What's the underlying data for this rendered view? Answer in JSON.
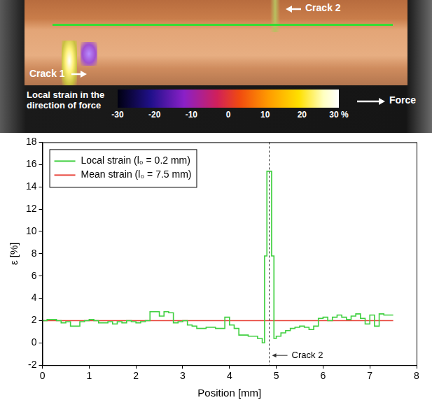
{
  "strain_map": {
    "crack_labels": [
      "Crack 1",
      "Crack 2"
    ],
    "force_label": "Force",
    "colorbar": {
      "title": "Local strain in the direction of force",
      "range": [
        -30,
        30
      ],
      "ticks": [
        -30,
        -20,
        -10,
        0,
        10,
        20,
        {
          "value": 30,
          "label": "30 %"
        }
      ]
    }
  },
  "chart_data": {
    "type": "line",
    "xlabel": "Position [mm]",
    "ylabel": "ε [%]",
    "xlim": [
      0,
      8
    ],
    "xticks": [
      0,
      1,
      2,
      3,
      4,
      5,
      6,
      7,
      8
    ],
    "ylim": [
      -2,
      18
    ],
    "yticks": [
      -2,
      0,
      2,
      4,
      6,
      8,
      10,
      12,
      14,
      16,
      18
    ],
    "grid": false,
    "legend": "upper left",
    "series": [
      {
        "name": "Local strain (l₀ = 0.2 mm)",
        "color": "#3fcf3f",
        "line_style": "steps",
        "x": [
          0,
          0.1,
          0.2,
          0.3,
          0.4,
          0.5,
          0.6,
          0.7,
          0.8,
          0.9,
          1.0,
          1.1,
          1.2,
          1.3,
          1.4,
          1.5,
          1.6,
          1.7,
          1.8,
          1.9,
          2.0,
          2.1,
          2.2,
          2.3,
          2.4,
          2.5,
          2.6,
          2.7,
          2.8,
          2.9,
          3.0,
          3.1,
          3.2,
          3.3,
          3.4,
          3.5,
          3.6,
          3.7,
          3.8,
          3.9,
          4.0,
          4.1,
          4.2,
          4.3,
          4.4,
          4.5,
          4.6,
          4.7,
          4.75,
          4.8,
          4.9,
          4.95,
          5.0,
          5.1,
          5.2,
          5.3,
          5.4,
          5.5,
          5.6,
          5.7,
          5.8,
          5.9,
          6.0,
          6.1,
          6.2,
          6.3,
          6.4,
          6.5,
          6.6,
          6.7,
          6.8,
          6.9,
          7.0,
          7.1,
          7.2,
          7.3,
          7.4,
          7.5
        ],
        "values": [
          2.0,
          2.1,
          2.1,
          2.0,
          1.8,
          1.9,
          1.5,
          1.5,
          1.9,
          2.0,
          2.1,
          2.0,
          1.8,
          1.8,
          1.9,
          1.7,
          1.9,
          1.8,
          2.0,
          1.9,
          1.8,
          1.9,
          2.0,
          2.8,
          2.8,
          2.4,
          2.8,
          2.7,
          1.8,
          1.9,
          2.0,
          1.6,
          1.5,
          1.3,
          1.3,
          1.4,
          1.4,
          1.3,
          1.3,
          2.3,
          1.6,
          1.3,
          0.7,
          0.7,
          0.6,
          0.6,
          0.4,
          0.0,
          7.8,
          15.4,
          7.8,
          0.4,
          0.6,
          0.9,
          1.1,
          1.3,
          1.4,
          1.5,
          1.4,
          1.2,
          1.5,
          2.2,
          2.3,
          2.0,
          2.3,
          2.5,
          2.3,
          2.1,
          2.4,
          2.6,
          2.2,
          1.7,
          2.5,
          1.5,
          2.6,
          2.5,
          2.5,
          2.5
        ]
      },
      {
        "name": "Mean strain (l₀ = 7.5 mm)",
        "color": "#e8433a",
        "line_style": "solid",
        "x": [
          0,
          7.5
        ],
        "values": [
          2,
          2
        ]
      }
    ],
    "annotations": [
      {
        "type": "vline",
        "x": 4.85,
        "text": "Crack 2",
        "line_style": "dashed"
      }
    ]
  }
}
